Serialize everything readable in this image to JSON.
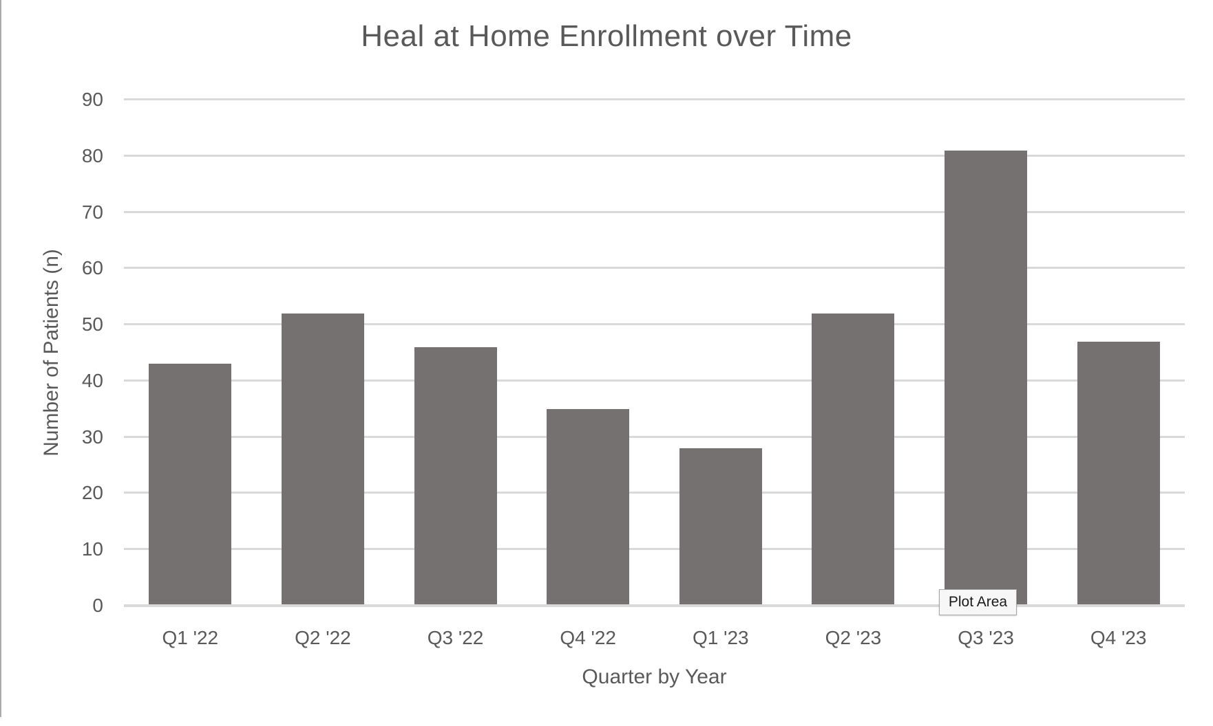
{
  "chart_data": {
    "type": "bar",
    "title": "Heal at Home Enrollment over Time",
    "xlabel": "Quarter by Year",
    "ylabel": "Number of Patients (n)",
    "categories": [
      "Q1 '22",
      "Q2 '22",
      "Q3 '22",
      "Q4 '22",
      "Q1 '23",
      "Q2 '23",
      "Q3 '23",
      "Q4 '23"
    ],
    "values": [
      43,
      52,
      46,
      35,
      28,
      52,
      81,
      47
    ],
    "ylim": [
      0,
      90
    ],
    "yticks": [
      0,
      10,
      20,
      30,
      40,
      50,
      60,
      70,
      80,
      90
    ],
    "grid": true,
    "legend": "none",
    "bar_color": "#767171",
    "gridline_color": "#d9d9d9",
    "text_color": "#595959"
  },
  "tooltip": {
    "label": "Plot Area"
  }
}
